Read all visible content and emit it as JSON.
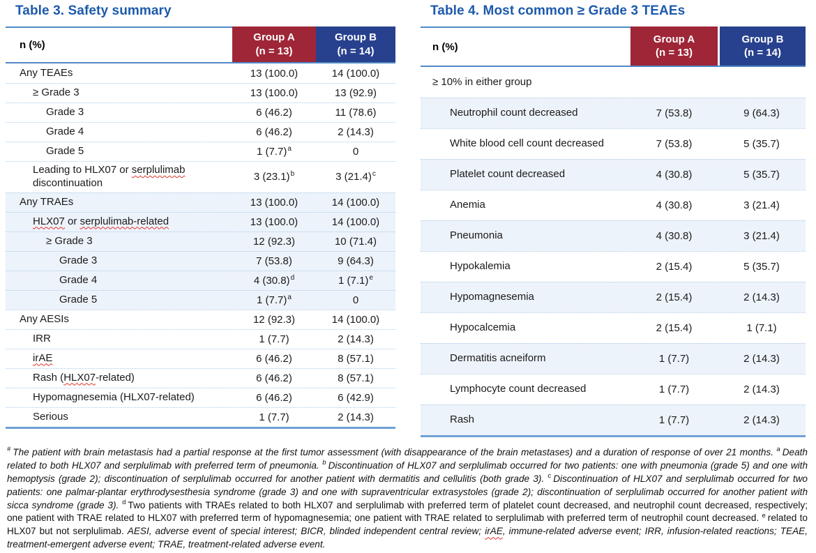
{
  "colors": {
    "title_blue": "#1C5AAC",
    "group_a_red": "#9E2637",
    "group_b_blue": "#28418E",
    "row_shade": "#EDF3FA",
    "header_rule": "#4E87C6",
    "bottom_rule": "#6FA0D6",
    "dotted_separator": "#A9CBEA",
    "spellcheck_wavy_red": "#E0302A"
  },
  "table3": {
    "title": "Table 3. Safety summary",
    "col_header": "n (%)",
    "groups": [
      {
        "name": "Group A",
        "n": "(n = 13)"
      },
      {
        "name": "Group B",
        "n": "(n = 14)"
      }
    ],
    "rows": [
      {
        "label": [
          {
            "text": "Any TEAEs"
          }
        ],
        "indent": 0,
        "a": "13 (100.0)",
        "b": "14 (100.0)",
        "shaded": false
      },
      {
        "label": [
          {
            "text": "≥ Grade 3"
          }
        ],
        "indent": 1,
        "a": "13 (100.0)",
        "b": "13 (92.9)",
        "shaded": false
      },
      {
        "label": [
          {
            "text": "Grade 3"
          }
        ],
        "indent": 2,
        "a": "6 (46.2)",
        "b": "11 (78.6)",
        "shaded": false
      },
      {
        "label": [
          {
            "text": "Grade 4"
          }
        ],
        "indent": 2,
        "a": "6 (46.2)",
        "b": "2 (14.3)",
        "shaded": false
      },
      {
        "label": [
          {
            "text": "Grade 5"
          }
        ],
        "indent": 2,
        "a": "1 (7.7)",
        "a_sup": "a",
        "b": "0",
        "shaded": false
      },
      {
        "label": [
          {
            "text": "Leading to HLX07 or "
          },
          {
            "text": "serplulimab",
            "wavy": true
          },
          {
            "text": " discontinuation"
          }
        ],
        "indent": 1,
        "a": "3 (23.1)",
        "a_sup": "b",
        "b": "3 (21.4)",
        "b_sup": "c",
        "shaded": false
      },
      {
        "label": [
          {
            "text": "Any TRAEs"
          }
        ],
        "indent": 0,
        "a": "13 (100.0)",
        "b": "14 (100.0)",
        "shaded": true
      },
      {
        "label": [
          {
            "text": "HLX07",
            "wavy": true
          },
          {
            "text": " or "
          },
          {
            "text": "serplulimab-related",
            "wavy": true
          }
        ],
        "indent": 1,
        "a": "13 (100.0)",
        "b": "14 (100.0)",
        "shaded": true
      },
      {
        "label": [
          {
            "text": "≥ Grade 3"
          }
        ],
        "indent": 2,
        "a": "12 (92.3)",
        "b": "10 (71.4)",
        "shaded": true
      },
      {
        "label": [
          {
            "text": "Grade 3"
          }
        ],
        "indent": 3,
        "a": "7 (53.8)",
        "b": "9 (64.3)",
        "shaded": true
      },
      {
        "label": [
          {
            "text": "Grade 4"
          }
        ],
        "indent": 3,
        "a": "4 (30.8)",
        "a_sup": "d",
        "b": "1 (7.1)",
        "b_sup": "e",
        "shaded": true
      },
      {
        "label": [
          {
            "text": "Grade 5"
          }
        ],
        "indent": 3,
        "a": "1 (7.7)",
        "a_sup": "a",
        "b": "0",
        "shaded": true
      },
      {
        "label": [
          {
            "text": "Any AESIs"
          }
        ],
        "indent": 0,
        "a": "12 (92.3)",
        "b": "14 (100.0)",
        "shaded": false
      },
      {
        "label": [
          {
            "text": "IRR"
          }
        ],
        "indent": 1,
        "a": "1 (7.7)",
        "b": "2 (14.3)",
        "shaded": false
      },
      {
        "label": [
          {
            "text": "irAE",
            "wavy": true
          }
        ],
        "indent": 1,
        "a": "6 (46.2)",
        "b": "8 (57.1)",
        "shaded": false
      },
      {
        "label": [
          {
            "text": "Rash ("
          },
          {
            "text": "HLX07",
            "wavy": true
          },
          {
            "text": "-related)"
          }
        ],
        "indent": 1,
        "a": "6 (46.2)",
        "b": "8 (57.1)",
        "shaded": false
      },
      {
        "label": [
          {
            "text": "Hypomagnesemia (HLX07-related)"
          }
        ],
        "indent": 1,
        "a": "6 (46.2)",
        "b": "6 (42.9)",
        "shaded": false
      },
      {
        "label": [
          {
            "text": "Serious"
          }
        ],
        "indent": 1,
        "a": "1 (7.7)",
        "b": "2 (14.3)",
        "shaded": false
      }
    ]
  },
  "table4": {
    "title": "Table 4. Most common ≥ Grade 3 TEAEs",
    "col_header": "n (%)",
    "groups": [
      {
        "name": "Group A",
        "n": "(n = 13)"
      },
      {
        "name": "Group B",
        "n": "(n = 14)"
      }
    ],
    "subheader": "≥ 10% in either group",
    "rows": [
      {
        "label": [
          {
            "text": "Neutrophil count decreased"
          }
        ],
        "indent": 1,
        "a": "7 (53.8)",
        "b": "9 (64.3)",
        "shaded": true
      },
      {
        "label": [
          {
            "text": "White blood cell count decreased"
          }
        ],
        "indent": 1,
        "a": "7 (53.8)",
        "b": "5 (35.7)",
        "shaded": false
      },
      {
        "label": [
          {
            "text": "Platelet count decreased"
          }
        ],
        "indent": 1,
        "a": "4 (30.8)",
        "b": "5 (35.7)",
        "shaded": true
      },
      {
        "label": [
          {
            "text": "Anemia"
          }
        ],
        "indent": 1,
        "a": "4 (30.8)",
        "b": "3 (21.4)",
        "shaded": false
      },
      {
        "label": [
          {
            "text": "Pneumonia"
          }
        ],
        "indent": 1,
        "a": "4 (30.8)",
        "b": "3 (21.4)",
        "shaded": true
      },
      {
        "label": [
          {
            "text": "Hypokalemia"
          }
        ],
        "indent": 1,
        "a": "2 (15.4)",
        "b": "5 (35.7)",
        "shaded": false
      },
      {
        "label": [
          {
            "text": "Hypomagnesemia"
          }
        ],
        "indent": 1,
        "a": "2 (15.4)",
        "b": "2 (14.3)",
        "shaded": true
      },
      {
        "label": [
          {
            "text": "Hypocalcemia"
          }
        ],
        "indent": 1,
        "a": "2 (15.4)",
        "b": "1 (7.1)",
        "shaded": false
      },
      {
        "label": [
          {
            "text": "Dermatitis acneiform"
          }
        ],
        "indent": 1,
        "a": "1 (7.7)",
        "b": "2 (14.3)",
        "shaded": true
      },
      {
        "label": [
          {
            "text": "Lymphocyte count decreased"
          }
        ],
        "indent": 1,
        "a": "1 (7.7)",
        "b": "2 (14.3)",
        "shaded": false
      },
      {
        "label": [
          {
            "text": "Rash"
          }
        ],
        "indent": 1,
        "a": "1 (7.7)",
        "b": "2 (14.3)",
        "shaded": true
      }
    ]
  },
  "footnote": {
    "segments": [
      {
        "sup": true,
        "text": "#",
        "italic": true
      },
      {
        "text": "The patient with brain metastasis had a partial response at the first tumor assessment (with disappearance of the brain metastases) and a duration of response of over 21 months. ",
        "italic": true
      },
      {
        "sup": true,
        "text": "a",
        "italic": true
      },
      {
        "text": "Death related to both HLX07 and serplulimab with preferred term of pneumonia. ",
        "italic": true
      },
      {
        "sup": true,
        "text": "b",
        "italic": true
      },
      {
        "text": "Discontinuation of HLX07 and serplulimab occurred for two patients: one with pneumonia (grade 5) and one with hemoptysis (grade 2); discontinuation of serplulimab occurred for another patient with dermatitis and cellulitis (both grade 3). ",
        "italic": true
      },
      {
        "sup": true,
        "text": "c",
        "italic": true
      },
      {
        "text": "Discontinuation of HLX07 and serplulimab occurred for two patients: one palmar-plantar erythrodysesthesia syndrome (grade 3) and one with supraventricular extrasystoles (grade 2); discontinuation of serplulimab occurred for another patient with sicca syndrome (grade 3). ",
        "italic": true
      },
      {
        "sup": true,
        "text": "d",
        "italic": false
      },
      {
        "text": "Two patients with TRAEs related to both HLX07 and serplulimab with preferred term of platelet count decreased, and neutrophil count decreased, respectively; one patient with TRAE related to HLX07 with preferred term of hypomagnesemia; one patient with TRAE related to serplulimab with preferred term of neutrophil count decreased. ",
        "italic": false
      },
      {
        "sup": true,
        "text": "e",
        "italic": false
      },
      {
        "text": "related to HLX07 but not serplulimab. ",
        "italic": false
      },
      {
        "text": "AESI, adverse event of special interest; BICR, blinded independent central review; ",
        "italic": true
      },
      {
        "text": "irAE",
        "italic": true,
        "wavy": true
      },
      {
        "text": ", immune-related adverse event; IRR, infusion-related reactions; TEAE, treatment-emergent adverse event; TRAE, treatment-related adverse event.",
        "italic": true
      }
    ]
  }
}
